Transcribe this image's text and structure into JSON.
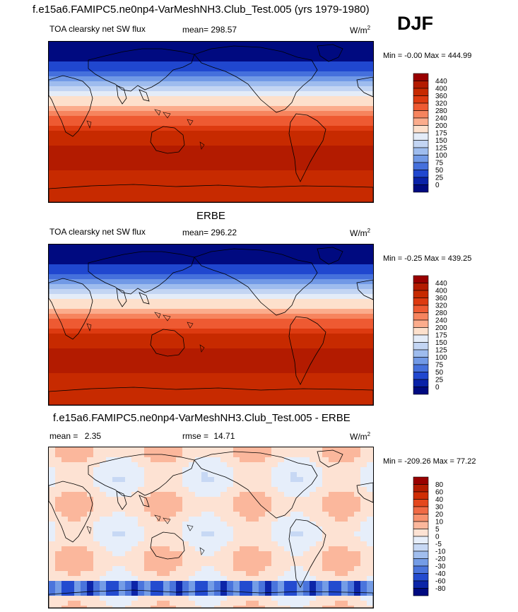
{
  "header": {
    "title": "f.e15a6.FAMIPC5.ne0np4-VarMeshNH3.Club_Test.005 (yrs 1979-1980)",
    "season": "DJF"
  },
  "panels": [
    {
      "id": "model",
      "heading": "",
      "left": "TOA clearsky net SW flux",
      "middle_label": "mean=",
      "middle_value": "298.57",
      "extra_label": "",
      "extra_value": "",
      "units": "W/m",
      "units_sup": "2",
      "minmax": "Min =  -0.00 Max = 444.99",
      "colorbar_ticks": [
        "440",
        "400",
        "360",
        "320",
        "280",
        "240",
        "200",
        "175",
        "150",
        "125",
        "100",
        "75",
        "50",
        "25",
        "0"
      ],
      "colorbar_colors": [
        "#990000",
        "#b31b00",
        "#c72a00",
        "#dd3a10",
        "#ee5a32",
        "#f6845e",
        "#fbac8c",
        "#fde0cc",
        "#e4ecf8",
        "#c3d5f3",
        "#9ebcee",
        "#7199e6",
        "#4570dc",
        "#2047cf",
        "#0a22a8",
        "#000a80"
      ]
    },
    {
      "id": "obs",
      "heading": "ERBE",
      "left": "TOA clearsky net SW flux",
      "middle_label": "mean=",
      "middle_value": "296.22",
      "extra_label": "",
      "extra_value": "",
      "units": "W/m",
      "units_sup": "2",
      "minmax": "Min =  -0.25 Max = 439.25",
      "colorbar_ticks": [
        "440",
        "400",
        "360",
        "320",
        "280",
        "240",
        "200",
        "175",
        "150",
        "125",
        "100",
        "75",
        "50",
        "25",
        "0"
      ],
      "colorbar_colors": [
        "#990000",
        "#b31b00",
        "#c72a00",
        "#dd3a10",
        "#ee5a32",
        "#f6845e",
        "#fbac8c",
        "#fde0cc",
        "#e4ecf8",
        "#c3d5f3",
        "#9ebcee",
        "#7199e6",
        "#4570dc",
        "#2047cf",
        "#0a22a8",
        "#000a80"
      ]
    },
    {
      "id": "diff",
      "heading": "f.e15a6.FAMIPC5.ne0np4-VarMeshNH3.Club_Test.005 - ERBE",
      "left": "",
      "middle_label": "mean =",
      "middle_value": "2.35",
      "extra_label": "rmse =",
      "extra_value": "14.71",
      "units": "W/m",
      "units_sup": "2",
      "minmax": "Min = -209.26 Max =  77.22",
      "colorbar_ticks": [
        "80",
        "60",
        "40",
        "30",
        "20",
        "10",
        "5",
        "0",
        "-5",
        "-10",
        "-20",
        "-30",
        "-40",
        "-60",
        "-80"
      ],
      "colorbar_colors": [
        "#990000",
        "#b31b00",
        "#d02e05",
        "#e4481e",
        "#f06a45",
        "#f7916e",
        "#fbb79c",
        "#fde2d3",
        "#e6eefa",
        "#c7d8f4",
        "#a1beee",
        "#749ce6",
        "#4a74dc",
        "#234bcf",
        "#0c25a8",
        "#000a80"
      ]
    }
  ],
  "colors": {
    "frame": "#000000",
    "coast": "#000000"
  }
}
